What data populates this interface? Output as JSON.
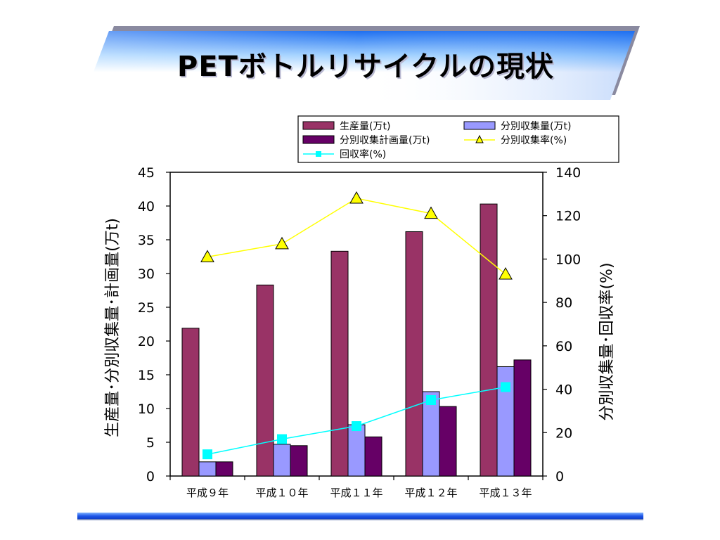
{
  "slide": {
    "title": "PETボトルリサイクルの現状"
  },
  "chart_data": {
    "type": "bar",
    "categories": [
      "平成９年",
      "平成１０年",
      "平成１１年",
      "平成１２年",
      "平成１３年"
    ],
    "series": [
      {
        "name": "生産量(万t)",
        "kind": "bar",
        "axis": "left",
        "color": "#993366",
        "values": [
          21.9,
          28.3,
          33.3,
          36.2,
          40.3
        ]
      },
      {
        "name": "分別収集量(万t)",
        "kind": "bar",
        "axis": "left",
        "color": "#9999ff",
        "values": [
          2.1,
          4.7,
          7.6,
          12.5,
          16.2
        ]
      },
      {
        "name": "分別収集計画量(万t)",
        "kind": "bar",
        "axis": "left",
        "color": "#660066",
        "values": [
          2.1,
          4.5,
          5.8,
          10.3,
          17.2
        ]
      },
      {
        "name": "分別収集率(%)",
        "kind": "line",
        "axis": "right",
        "color": "#ffff00",
        "marker": "triangle",
        "values": [
          101,
          107,
          128,
          121,
          93
        ]
      },
      {
        "name": "回収率(%)",
        "kind": "line",
        "axis": "right",
        "color": "#00ffff",
        "marker": "square",
        "values": [
          10,
          17,
          23,
          35,
          41
        ]
      }
    ],
    "y_left": {
      "label": "生産量･分別収集量･計画量(万t)",
      "ylim": [
        0,
        45
      ],
      "ticks": [
        0,
        5,
        10,
        15,
        20,
        25,
        30,
        35,
        40,
        45
      ]
    },
    "y_right": {
      "label": "分別収集量･回収率(%)",
      "ylim": [
        0,
        140
      ],
      "ticks": [
        0,
        20,
        40,
        60,
        80,
        100,
        120,
        140
      ]
    },
    "grid": false,
    "legend_position": "top-right"
  }
}
